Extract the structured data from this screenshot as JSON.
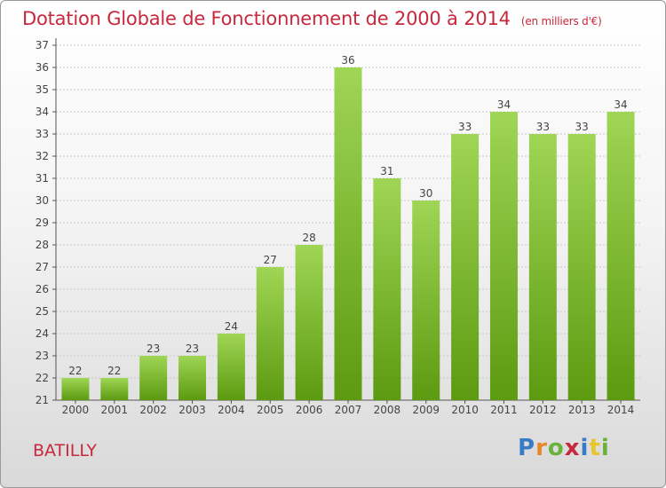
{
  "title": "Dotation Globale de Fonctionnement de 2000 à 2014",
  "unit": "(en milliers d'€)",
  "place": "BATILLY",
  "logo": {
    "letters": [
      "P",
      "r",
      "o",
      "x",
      "i",
      "t",
      "i"
    ],
    "colors": [
      "#3a7bc8",
      "#e8872a",
      "#6ab23d",
      "#c8283c",
      "#3a7bc8",
      "#e8c52a",
      "#6ab23d"
    ]
  },
  "colors": {
    "bar_light": "#9fd655",
    "bar_dark": "#5c9a10",
    "text": "#c8283c"
  },
  "chart_data": {
    "type": "bar",
    "categories": [
      "2000",
      "2001",
      "2002",
      "2003",
      "2004",
      "2005",
      "2006",
      "2007",
      "2008",
      "2009",
      "2010",
      "2011",
      "2012",
      "2013",
      "2014"
    ],
    "values": [
      22,
      22,
      23,
      23,
      24,
      27,
      28,
      36,
      31,
      30,
      33,
      34,
      33,
      33,
      34
    ],
    "ylim": [
      21,
      37
    ],
    "yticks": [
      21,
      22,
      23,
      24,
      25,
      26,
      27,
      28,
      29,
      30,
      31,
      32,
      33,
      34,
      35,
      36,
      37
    ],
    "grid": true
  }
}
